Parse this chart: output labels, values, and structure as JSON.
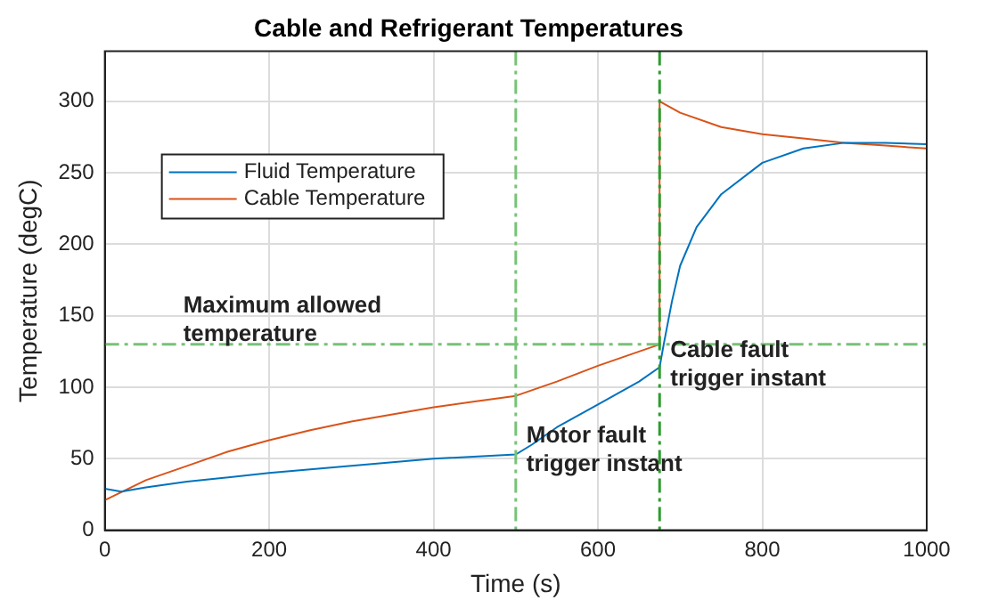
{
  "chart_data": {
    "type": "line",
    "title": "Cable and Refrigerant Temperatures",
    "xlabel": "Time (s)",
    "ylabel": "Temperature (degC)",
    "xlim": [
      0,
      1000
    ],
    "xticks": [
      0,
      200,
      400,
      600,
      800,
      1000
    ],
    "ylim": [
      0,
      335
    ],
    "yticks": [
      0,
      50,
      100,
      150,
      200,
      250,
      300
    ],
    "grid": true,
    "legend": "top left",
    "line_style": "solid",
    "marker": "none",
    "series": [
      {
        "name": "Fluid Temperature",
        "color": "#0072bd",
        "x": [
          0,
          20,
          50,
          100,
          200,
          300,
          400,
          500,
          520,
          550,
          600,
          650,
          675,
          680,
          690,
          700,
          720,
          750,
          800,
          850,
          900,
          950,
          1000
        ],
        "values": [
          29,
          27,
          30,
          34,
          40,
          45,
          50,
          53,
          60,
          72,
          88,
          104,
          114,
          130,
          160,
          185,
          212,
          235,
          257,
          267,
          271,
          271,
          270
        ]
      },
      {
        "name": "Cable Temperature",
        "color": "#d95319",
        "x": [
          0,
          25,
          50,
          100,
          150,
          200,
          250,
          300,
          350,
          400,
          450,
          500,
          550,
          600,
          650,
          675,
          675,
          700,
          750,
          800,
          850,
          900,
          950,
          1000
        ],
        "values": [
          21,
          28,
          35,
          45,
          55,
          63,
          70,
          76,
          81,
          86,
          90,
          94,
          104,
          115,
          125,
          130,
          300,
          292,
          282,
          277,
          274,
          271,
          269,
          267
        ]
      }
    ],
    "ref_lines": [
      {
        "axis": "y",
        "value": 130,
        "label": "Maximum allowed\ntemperature",
        "color": "#77c277",
        "line_style": "dashed"
      },
      {
        "axis": "x",
        "value": 500,
        "label": "Motor fault\ntrigger instant",
        "color": "#77c277",
        "line_style": "dashed"
      },
      {
        "axis": "x",
        "value": 675,
        "label": "Cable fault\ntrigger instant",
        "color": "#2e9b2e",
        "line_style": "dashed"
      }
    ]
  }
}
